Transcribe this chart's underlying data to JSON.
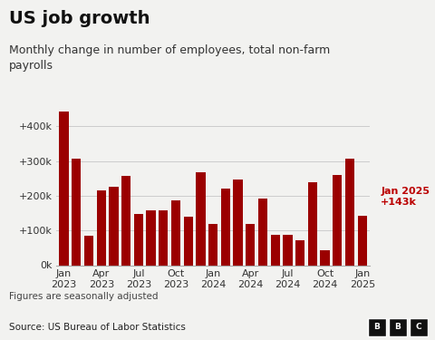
{
  "title": "US job growth",
  "subtitle": "Monthly change in number of employees, total non-farm\npayrolls",
  "values": [
    444000,
    306000,
    85000,
    216000,
    227000,
    257000,
    148000,
    157000,
    158000,
    186000,
    141000,
    269000,
    119000,
    222000,
    246000,
    118000,
    193000,
    87000,
    88000,
    71000,
    240000,
    44000,
    261000,
    307000,
    143000
  ],
  "tick_positions": [
    0,
    3,
    6,
    9,
    12,
    15,
    18,
    21,
    24
  ],
  "tick_labels": [
    "Jan\n2023",
    "Apr\n2023",
    "Jul\n2023",
    "Oct\n2023",
    "Jan\n2024",
    "Apr\n2024",
    "Jul\n2024",
    "Oct\n2024",
    "Jan\n2025"
  ],
  "bar_color": "#9B0000",
  "annotation_text": "Jan 2025\n+143k",
  "annotation_color": "#BB0000",
  "yticks": [
    0,
    100000,
    200000,
    300000,
    400000
  ],
  "ytick_labels": [
    "0k",
    "+100k",
    "+200k",
    "+300k",
    "+400k"
  ],
  "ylim": [
    0,
    490000
  ],
  "footnote": "Figures are seasonally adjusted",
  "source": "Source: US Bureau of Labor Statistics",
  "bg_color": "#f2f2f0",
  "grid_color": "#cccccc",
  "title_fontsize": 14,
  "subtitle_fontsize": 9,
  "tick_fontsize": 8,
  "footnote_fontsize": 7.5,
  "source_fontsize": 7.5
}
